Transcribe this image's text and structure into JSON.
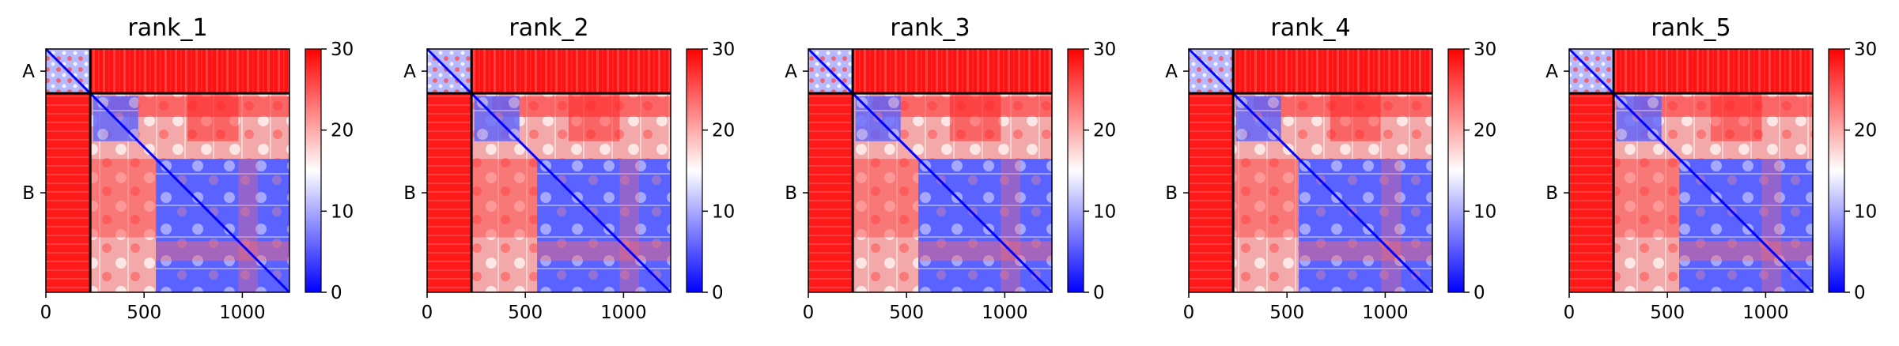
{
  "chart_data": [
    {
      "type": "heatmap",
      "title": "rank_1",
      "chains": [
        "A",
        "B"
      ],
      "chain_boundary": 226,
      "n_residues": 1240,
      "x_ticks": [
        0,
        500,
        1000
      ],
      "colorbar": {
        "min": 0,
        "max": 30,
        "ticks": [
          0,
          10,
          20,
          30
        ],
        "colormap": "bwr"
      },
      "blocks": {
        "A-A": "low (blue)",
        "A-B": "high (red, ~30)",
        "B-A": "high (red, ~30)",
        "B-B": "mixed, blue diagonal"
      }
    },
    {
      "type": "heatmap",
      "title": "rank_2",
      "chains": [
        "A",
        "B"
      ],
      "chain_boundary": 226,
      "n_residues": 1240,
      "x_ticks": [
        0,
        500,
        1000
      ],
      "colorbar": {
        "min": 0,
        "max": 30,
        "ticks": [
          0,
          10,
          20,
          30
        ],
        "colormap": "bwr"
      },
      "blocks": {
        "A-A": "low (blue)",
        "A-B": "high (red, ~30)",
        "B-A": "high (red, ~30)",
        "B-B": "mixed, blue diagonal"
      }
    },
    {
      "type": "heatmap",
      "title": "rank_3",
      "chains": [
        "A",
        "B"
      ],
      "chain_boundary": 226,
      "n_residues": 1240,
      "x_ticks": [
        0,
        500,
        1000
      ],
      "colorbar": {
        "min": 0,
        "max": 30,
        "ticks": [
          0,
          10,
          20,
          30
        ],
        "colormap": "bwr"
      },
      "blocks": {
        "A-A": "low (blue)",
        "A-B": "high (red, ~30)",
        "B-A": "high (red, ~30)",
        "B-B": "mixed, blue diagonal"
      }
    },
    {
      "type": "heatmap",
      "title": "rank_4",
      "chains": [
        "A",
        "B"
      ],
      "chain_boundary": 226,
      "n_residues": 1240,
      "x_ticks": [
        0,
        500,
        1000
      ],
      "colorbar": {
        "min": 0,
        "max": 30,
        "ticks": [
          0,
          10,
          20,
          30
        ],
        "colormap": "bwr"
      },
      "blocks": {
        "A-A": "low (blue)",
        "A-B": "high (red, ~30)",
        "B-A": "high (red, ~30)",
        "B-B": "mixed, blue diagonal"
      }
    },
    {
      "type": "heatmap",
      "title": "rank_5",
      "chains": [
        "A",
        "B"
      ],
      "chain_boundary": 226,
      "n_residues": 1240,
      "x_ticks": [
        0,
        500,
        1000
      ],
      "colorbar": {
        "min": 0,
        "max": 30,
        "ticks": [
          0,
          10,
          20,
          30
        ],
        "colormap": "bwr"
      },
      "blocks": {
        "A-A": "low (blue)",
        "A-B": "high (red, ~30)",
        "B-A": "high (red, ~30)",
        "B-B": "mixed, blue diagonal"
      }
    }
  ],
  "colors": {
    "low": "#0000ff",
    "mid": "#ffffff",
    "high": "#ff0000",
    "axis": "#000000"
  }
}
